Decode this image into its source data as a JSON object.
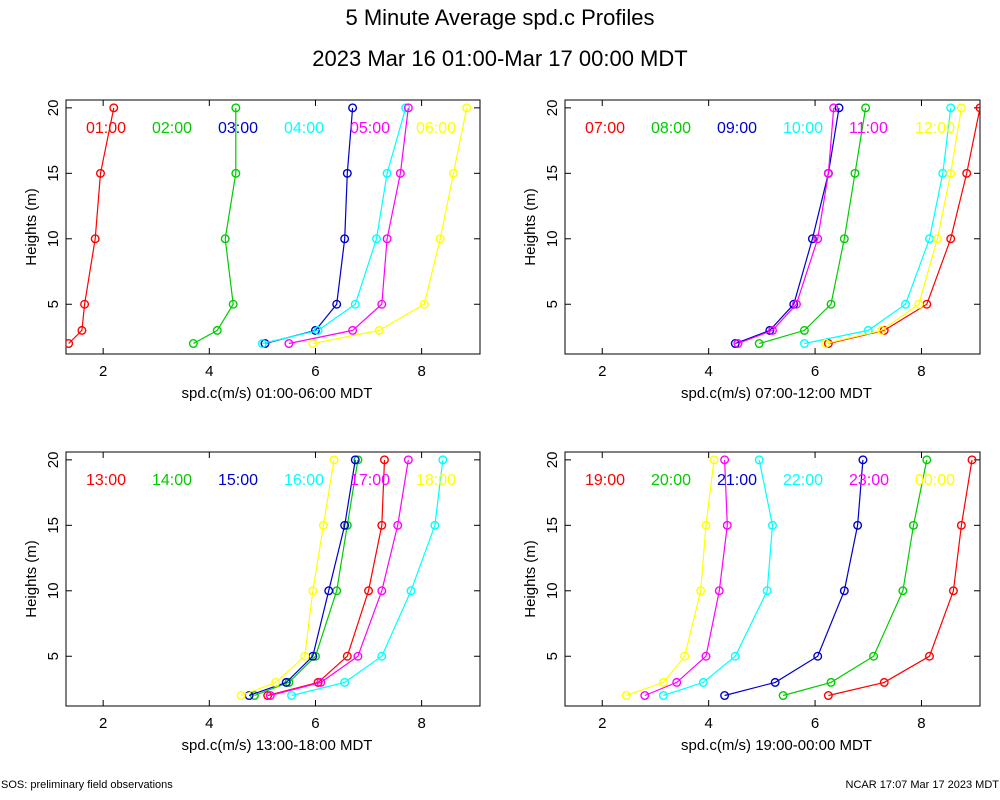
{
  "title": "5 Minute Average spd.c Profiles",
  "subtitle": "2023 Mar 16 01:00-Mar 17 00:00 MDT",
  "footer_left": "SOS: preliminary field observations",
  "footer_right": "NCAR 17:07 Mar 17 2023 MDT",
  "chart_data": [
    {
      "type": "line",
      "xlabel": "spd.c(m/s) 01:00-06:00 MDT",
      "ylabel": "Heights (m)",
      "xlim": [
        1.3,
        9.1
      ],
      "ylim": [
        1.2,
        20.6
      ],
      "xticks": [
        2,
        4,
        6,
        8
      ],
      "yticks": [
        5,
        10,
        15,
        20
      ],
      "heights": [
        2,
        3,
        5,
        10,
        15,
        20
      ],
      "series": [
        {
          "name": "01:00",
          "color": "#ff0000",
          "values": [
            1.35,
            1.6,
            1.65,
            1.85,
            1.95,
            2.2
          ]
        },
        {
          "name": "02:00",
          "color": "#00cc00",
          "values": [
            3.7,
            4.15,
            4.45,
            4.3,
            4.5,
            4.5
          ]
        },
        {
          "name": "03:00",
          "color": "#0000cc",
          "values": [
            5.05,
            6.0,
            6.4,
            6.55,
            6.6,
            6.7
          ]
        },
        {
          "name": "04:00",
          "color": "#00ffff",
          "values": [
            5.0,
            6.05,
            6.75,
            7.15,
            7.35,
            7.7
          ]
        },
        {
          "name": "05:00",
          "color": "#ff00ff",
          "values": [
            5.5,
            6.7,
            7.25,
            7.35,
            7.6,
            7.75
          ]
        },
        {
          "name": "06:00",
          "color": "#ffff00",
          "values": [
            5.95,
            7.2,
            8.05,
            8.35,
            8.6,
            8.85
          ]
        }
      ]
    },
    {
      "type": "line",
      "xlabel": "spd.c(m/s) 07:00-12:00 MDT",
      "ylabel": "Heights (m)",
      "xlim": [
        1.3,
        9.1
      ],
      "ylim": [
        1.2,
        20.6
      ],
      "xticks": [
        2,
        4,
        6,
        8
      ],
      "yticks": [
        5,
        10,
        15,
        20
      ],
      "heights": [
        2,
        3,
        5,
        10,
        15,
        20
      ],
      "series": [
        {
          "name": "07:00",
          "color": "#ff0000",
          "values": [
            6.25,
            7.3,
            8.1,
            8.55,
            8.85,
            9.1
          ]
        },
        {
          "name": "08:00",
          "color": "#00cc00",
          "values": [
            4.95,
            5.8,
            6.3,
            6.55,
            6.75,
            6.95
          ]
        },
        {
          "name": "09:00",
          "color": "#0000cc",
          "values": [
            4.5,
            5.15,
            5.6,
            5.95,
            6.25,
            6.45
          ]
        },
        {
          "name": "10:00",
          "color": "#00ffff",
          "values": [
            5.8,
            7.0,
            7.7,
            8.15,
            8.4,
            8.55
          ]
        },
        {
          "name": "11:00",
          "color": "#ff00ff",
          "values": [
            4.55,
            5.2,
            5.65,
            6.05,
            6.25,
            6.35
          ]
        },
        {
          "name": "12:00",
          "color": "#ffff00",
          "values": [
            6.2,
            7.25,
            7.95,
            8.3,
            8.55,
            8.75
          ]
        }
      ]
    },
    {
      "type": "line",
      "xlabel": "spd.c(m/s) 13:00-18:00 MDT",
      "ylabel": "Heights (m)",
      "xlim": [
        1.3,
        9.1
      ],
      "ylim": [
        1.2,
        20.6
      ],
      "xticks": [
        2,
        4,
        6,
        8
      ],
      "yticks": [
        5,
        10,
        15,
        20
      ],
      "heights": [
        2,
        3,
        5,
        10,
        15,
        20
      ],
      "series": [
        {
          "name": "13:00",
          "color": "#ff0000",
          "values": [
            5.1,
            6.05,
            6.6,
            7.0,
            7.25,
            7.3
          ]
        },
        {
          "name": "14:00",
          "color": "#00cc00",
          "values": [
            4.85,
            5.5,
            6.0,
            6.4,
            6.6,
            6.8
          ]
        },
        {
          "name": "15:00",
          "color": "#0000cc",
          "values": [
            4.75,
            5.45,
            5.95,
            6.25,
            6.55,
            6.75
          ]
        },
        {
          "name": "16:00",
          "color": "#00ffff",
          "values": [
            5.55,
            6.55,
            7.25,
            7.8,
            8.25,
            8.4
          ]
        },
        {
          "name": "17:00",
          "color": "#ff00ff",
          "values": [
            5.15,
            6.1,
            6.8,
            7.25,
            7.55,
            7.75
          ]
        },
        {
          "name": "18:00",
          "color": "#ffff00",
          "values": [
            4.6,
            5.25,
            5.8,
            5.95,
            6.15,
            6.35
          ]
        }
      ]
    },
    {
      "type": "line",
      "xlabel": "spd.c(m/s) 19:00-00:00 MDT",
      "ylabel": "Heights (m)",
      "xlim": [
        1.3,
        9.1
      ],
      "ylim": [
        1.2,
        20.6
      ],
      "xticks": [
        2,
        4,
        6,
        8
      ],
      "yticks": [
        5,
        10,
        15,
        20
      ],
      "heights": [
        2,
        3,
        5,
        10,
        15,
        20
      ],
      "series": [
        {
          "name": "19:00",
          "color": "#ff0000",
          "values": [
            6.25,
            7.3,
            8.15,
            8.6,
            8.75,
            8.95
          ]
        },
        {
          "name": "20:00",
          "color": "#00cc00",
          "values": [
            5.4,
            6.3,
            7.1,
            7.65,
            7.85,
            8.1
          ]
        },
        {
          "name": "21:00",
          "color": "#0000cc",
          "values": [
            4.3,
            5.25,
            6.05,
            6.55,
            6.8,
            6.9
          ]
        },
        {
          "name": "22:00",
          "color": "#00ffff",
          "values": [
            3.15,
            3.9,
            4.5,
            5.1,
            5.2,
            4.95
          ]
        },
        {
          "name": "23:00",
          "color": "#ff00ff",
          "values": [
            2.8,
            3.4,
            3.95,
            4.2,
            4.35,
            4.3
          ]
        },
        {
          "name": "00:00",
          "color": "#ffff00",
          "values": [
            2.45,
            3.15,
            3.55,
            3.85,
            3.95,
            4.1
          ]
        }
      ]
    }
  ]
}
